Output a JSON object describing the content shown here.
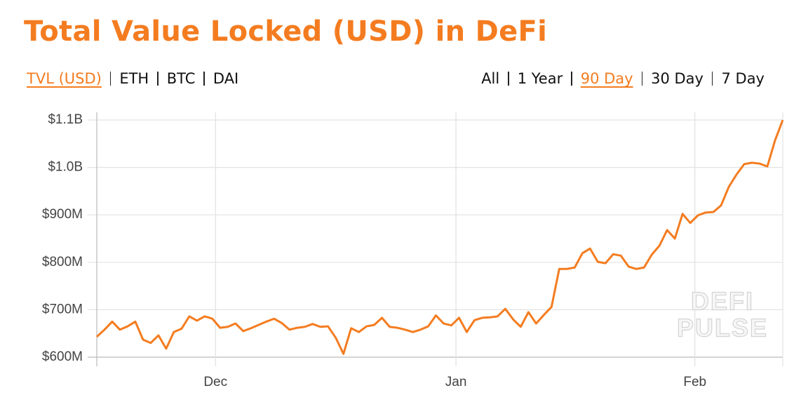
{
  "chart_data": {
    "type": "line",
    "title": "Total Value Locked (USD) in DeFi",
    "metrics": [
      {
        "label": "TVL (USD)",
        "active": true
      },
      {
        "label": "ETH",
        "active": false
      },
      {
        "label": "BTC",
        "active": false
      },
      {
        "label": "DAI",
        "active": false
      }
    ],
    "ranges": [
      {
        "label": "All",
        "active": false
      },
      {
        "label": "1 Year",
        "active": false
      },
      {
        "label": "90 Day",
        "active": true
      },
      {
        "label": "30 Day",
        "active": false
      },
      {
        "label": "7 Day",
        "active": false
      }
    ],
    "watermark": [
      "DEFI",
      "PULSE"
    ],
    "x": [
      0,
      1,
      2,
      3,
      4,
      5,
      6,
      7,
      8,
      9,
      10,
      11,
      12,
      13,
      14,
      15,
      16,
      17,
      18,
      19,
      20,
      21,
      22,
      23,
      24,
      25,
      26,
      27,
      28,
      29,
      30,
      31,
      32,
      33,
      34,
      35,
      36,
      37,
      38,
      39,
      40,
      41,
      42,
      43,
      44,
      45,
      46,
      47,
      48,
      49,
      50,
      51,
      52,
      53,
      54,
      55,
      56,
      57,
      58,
      59,
      60,
      61,
      62,
      63,
      64,
      65,
      66,
      67,
      68,
      69,
      70,
      71,
      72,
      73,
      74,
      75,
      76,
      77,
      78,
      79,
      80,
      81,
      82,
      83,
      84,
      85,
      86,
      87,
      88,
      89
    ],
    "series": [
      {
        "name": "TVL (USD)",
        "color": "#f47c20",
        "values": [
          643,
          658,
          675,
          658,
          665,
          675,
          637,
          630,
          646,
          618,
          653,
          660,
          686,
          677,
          686,
          681,
          662,
          664,
          671,
          655,
          661,
          668,
          675,
          681,
          672,
          658,
          662,
          664,
          670,
          664,
          665,
          641,
          607,
          661,
          653,
          665,
          668,
          683,
          664,
          662,
          658,
          653,
          658,
          665,
          688,
          671,
          667,
          683,
          653,
          678,
          683,
          684,
          686,
          702,
          680,
          664,
          695,
          671,
          689,
          706,
          786,
          786,
          789,
          819,
          829,
          801,
          798,
          817,
          814,
          791,
          786,
          789,
          816,
          835,
          868,
          850,
          902,
          883,
          899,
          905,
          906,
          920,
          959,
          985,
          1007,
          1010,
          1008,
          1002,
          1057,
          1100
        ]
      }
    ],
    "xlim": [
      0,
      89
    ],
    "xticks": [
      {
        "value": 15.4,
        "label": "Dec"
      },
      {
        "value": 46.6,
        "label": "Jan"
      },
      {
        "value": 77.6,
        "label": "Feb"
      }
    ],
    "ylim": [
      600,
      1100
    ],
    "yticks": [
      {
        "value": 600,
        "label": "$600M"
      },
      {
        "value": 700,
        "label": "$700M"
      },
      {
        "value": 800,
        "label": "$800M"
      },
      {
        "value": 900,
        "label": "$900M"
      },
      {
        "value": 1000,
        "label": "$1.0B"
      },
      {
        "value": 1100,
        "label": "$1.1B"
      }
    ],
    "grid": true
  }
}
